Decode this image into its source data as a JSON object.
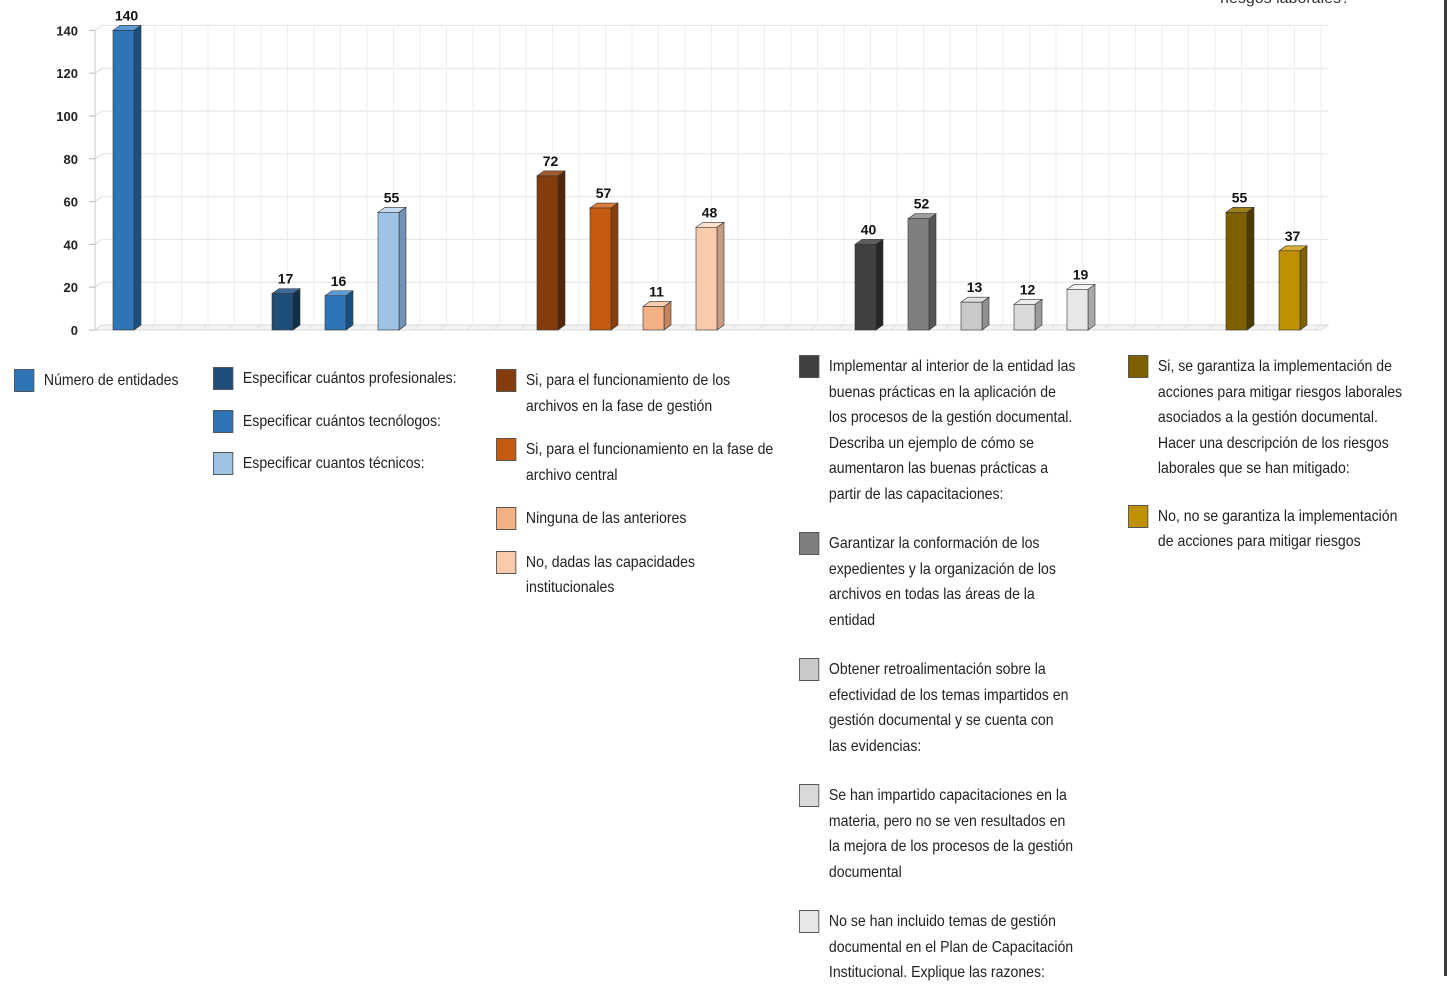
{
  "corner_note": "riesgos laborales?",
  "chart_data": {
    "type": "bar",
    "ylim": [
      0,
      140
    ],
    "yticks": [
      0,
      20,
      40,
      60,
      80,
      100,
      120,
      140
    ],
    "grid": true,
    "bars": [
      {
        "value": 140,
        "label": "140",
        "color": "#2e75b6",
        "dark": "#1d4f7e",
        "top": "#5b9bd5"
      },
      {
        "value": 17,
        "label": "17",
        "color": "#1f4e79",
        "dark": "#122f49",
        "top": "#3a6b9a"
      },
      {
        "value": 16,
        "label": "16",
        "color": "#2e75b6",
        "dark": "#1d4f7e",
        "top": "#5b9bd5"
      },
      {
        "value": 55,
        "label": "55",
        "color": "#9dc3e6",
        "dark": "#6f93b5",
        "top": "#c5dcf0"
      },
      {
        "value": 72,
        "label": "72",
        "color": "#843c0c",
        "dark": "#55260a",
        "top": "#a35a2c"
      },
      {
        "value": 57,
        "label": "57",
        "color": "#c55a11",
        "dark": "#8a3e0b",
        "top": "#dd7d3c"
      },
      {
        "value": 11,
        "label": "11",
        "color": "#f4b183",
        "dark": "#c2845b",
        "top": "#f8cfb0"
      },
      {
        "value": 48,
        "label": "48",
        "color": "#f8cbad",
        "dark": "#c89c80",
        "top": "#fbe0cc"
      },
      {
        "value": 40,
        "label": "40",
        "color": "#404040",
        "dark": "#262626",
        "top": "#5e5e5e"
      },
      {
        "value": 52,
        "label": "52",
        "color": "#7f7f7f",
        "dark": "#555555",
        "top": "#a0a0a0"
      },
      {
        "value": 13,
        "label": "13",
        "color": "#c9c9c9",
        "dark": "#8f8f8f",
        "top": "#e0e0e0"
      },
      {
        "value": 12,
        "label": "12",
        "color": "#d9d9d9",
        "dark": "#9c9c9c",
        "top": "#ececec"
      },
      {
        "value": 19,
        "label": "19",
        "color": "#e7e7e7",
        "dark": "#a8a8a8",
        "top": "#f4f4f4"
      },
      {
        "value": 55,
        "label": "55",
        "color": "#7f6000",
        "dark": "#4d3a00",
        "top": "#a07f1f"
      },
      {
        "value": 37,
        "label": "37",
        "color": "#bf9000",
        "dark": "#7f6000",
        "top": "#d8ad33"
      }
    ]
  },
  "legend": {
    "col1": [
      {
        "color": "#2e75b6",
        "lines": [
          "Número de entidades"
        ]
      }
    ],
    "col2": [
      {
        "color": "#1f4e79",
        "lines": [
          "Especificar cuántos profesionales:"
        ]
      },
      {
        "color": "#2e75b6",
        "lines": [
          "Especificar cuántos tecnólogos:"
        ]
      },
      {
        "color": "#9dc3e6",
        "lines": [
          "Especificar cuantos técnicos:"
        ]
      }
    ],
    "col3": [
      {
        "color": "#843c0c",
        "lines": [
          "Si, para el funcionamiento de los",
          "archivos en la fase de gestión"
        ]
      },
      {
        "color": "#c55a11",
        "lines": [
          "Si, para el funcionamiento en la fase de",
          "archivo central"
        ]
      },
      {
        "color": "#f4b183",
        "lines": [
          "Ninguna de las anteriores"
        ]
      },
      {
        "color": "#f8cbad",
        "lines": [
          "No, dadas las capacidades",
          "institucionales"
        ]
      }
    ],
    "col4": [
      {
        "color": "#404040",
        "lines": [
          "Implementar al interior de la entidad las",
          "buenas prácticas en la aplicación de",
          "los procesos de la gestión documental.",
          "Describa un ejemplo de cómo se",
          "aumentaron las buenas prácticas a",
          "partir de las capacitaciones:"
        ]
      },
      {
        "color": "#7f7f7f",
        "lines": [
          "Garantizar la conformación de los",
          "expedientes y la organización de los",
          "archivos en todas las áreas de la",
          "entidad"
        ]
      },
      {
        "color": "#c9c9c9",
        "lines": [
          "Obtener retroalimentación sobre la",
          "efectividad de los temas impartidos en",
          "gestión documental y  se cuenta con",
          "las evidencias:"
        ]
      },
      {
        "color": "#d9d9d9",
        "lines": [
          "Se han impartido capacitaciones en la",
          "materia, pero no se ven resultados en",
          "la mejora de los procesos de la gestión",
          "documental"
        ]
      },
      {
        "color": "#e7e7e7",
        "lines": [
          "No se han incluido temas de gestión",
          "documental en el Plan de Capacitación",
          "Institucional.  Explique las razones:"
        ]
      }
    ],
    "col5": [
      {
        "color": "#7f6000",
        "lines": [
          "Si, se garantiza la implementación de",
          "acciones para mitigar riesgos laborales",
          "asociados a la gestión documental.",
          "Hacer una descripción de los riesgos",
          "laborales que se han mitigado:"
        ]
      },
      {
        "color": "#bf9000",
        "lines": [
          "No, no se garantiza la implementación",
          "de acciones para mitigar riesgos"
        ]
      }
    ]
  }
}
